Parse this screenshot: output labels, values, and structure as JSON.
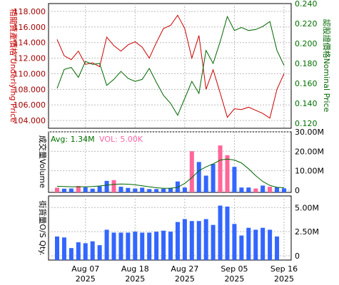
{
  "chart_data": [
    {
      "type": "line",
      "panel": "price",
      "x": [
        "Aug 01",
        "Aug 04",
        "Aug 05",
        "Aug 06",
        "Aug 07",
        "Aug 08",
        "Aug 11",
        "Aug 12",
        "Aug 13",
        "Aug 14",
        "Aug 15",
        "Aug 18",
        "Aug 19",
        "Aug 20",
        "Aug 21",
        "Aug 22",
        "Aug 25",
        "Aug 26",
        "Aug 27",
        "Aug 28",
        "Aug 29",
        "Sep 01",
        "Sep 02",
        "Sep 03",
        "Sep 04",
        "Sep 05",
        "Sep 08",
        "Sep 09",
        "Sep 10",
        "Sep 11",
        "Sep 12",
        "Sep 15",
        "Sep 16"
      ],
      "series": [
        {
          "name": "相關資產價格 Underlying Price",
          "axis": "left",
          "color": "#cc0000",
          "values": [
            114.4,
            112.3,
            111.8,
            112.9,
            111.2,
            111.4,
            110.9,
            114.7,
            113.6,
            112.9,
            113.7,
            114.1,
            113.4,
            112.0,
            114.0,
            115.8,
            116.2,
            117.5,
            115.8,
            112.0,
            114.9,
            108.0,
            110.5,
            107.5,
            104.4,
            105.5,
            105.4,
            105.7,
            105.3,
            104.9,
            104.3,
            108.0,
            110.0
          ]
        },
        {
          "name": "Nominal Price",
          "axis": "right",
          "color": "#006600",
          "values": [
            0.155,
            0.174,
            0.176,
            0.166,
            0.182,
            0.179,
            0.18,
            0.158,
            0.164,
            0.172,
            0.165,
            0.162,
            0.164,
            0.175,
            0.161,
            0.148,
            0.14,
            0.128,
            0.145,
            0.162,
            0.15,
            0.193,
            0.18,
            0.202,
            0.227,
            0.213,
            0.216,
            0.213,
            0.214,
            0.217,
            0.222,
            0.193,
            0.178
          ]
        }
      ],
      "ylim_left": [
        103,
        119
      ],
      "yticks_left": [
        "104.000",
        "106.000",
        "108.000",
        "110.000",
        "112.000",
        "114.000",
        "116.000",
        "118.000"
      ],
      "ylim_right": [
        0.115,
        0.24
      ],
      "yticks_right": [
        "0.120",
        "0.140",
        "0.160",
        "0.180",
        "0.200",
        "0.220",
        "0.240"
      ],
      "ylabel_left": "相關資產價格 Underlying Price",
      "ylabel_right": "認股證價格Nominal Price",
      "grid": true
    },
    {
      "type": "bar",
      "panel": "volume",
      "title": "Avg: 1.34M",
      "annotation": "VOL: 5.00K",
      "ylabel": "成交量Volume",
      "ylim": [
        0,
        30000000
      ],
      "yticks": [
        "0",
        "10.00M",
        "20.00M",
        "30.00M"
      ],
      "values": [
        1300000,
        800000,
        900000,
        2200000,
        1500000,
        800000,
        2000000,
        4800000,
        5200000,
        1800000,
        1200000,
        900000,
        1300000,
        600000,
        600000,
        800000,
        1200000,
        4500000,
        1400000,
        20000000,
        14500000,
        7500000,
        13500000,
        23000000,
        18000000,
        12000000,
        1400000,
        1400000,
        900000,
        2400000,
        1800000,
        1500000,
        1000000
      ],
      "bar_colors": [
        "#ff6699",
        "#3366ff",
        "#3366ff",
        "#ff6699",
        "#3366ff",
        "#3366ff",
        "#3366ff",
        "#3366ff",
        "#ff6699",
        "#3366ff",
        "#3366ff",
        "#3366ff",
        "#3366ff",
        "#3366ff",
        "#3366ff",
        "#3366ff",
        "#3366ff",
        "#3366ff",
        "#3366ff",
        "#ff6699",
        "#3366ff",
        "#3366ff",
        "#3366ff",
        "#ff6699",
        "#ff6699",
        "#3366ff",
        "#3366ff",
        "#3366ff",
        "#ff6699",
        "#3366ff",
        "#ff6699",
        "#3366ff",
        "#3366ff"
      ],
      "avg_line": [
        2000000,
        1900000,
        1800000,
        1800000,
        1800000,
        1900000,
        2200000,
        2600000,
        3000000,
        3200000,
        3100000,
        2800000,
        2300000,
        1800000,
        1300000,
        1000000,
        1000000,
        1500000,
        3500000,
        6500000,
        10000000,
        12000000,
        13500000,
        15500000,
        16000000,
        15500000,
        14000000,
        11000000,
        7500000,
        4500000,
        2500000,
        1500000,
        1300000
      ]
    },
    {
      "type": "bar",
      "panel": "os_qty",
      "ylabel": "街貨量O/S Qty.",
      "ylim": [
        0,
        6200000
      ],
      "yticks": [
        "0",
        "2.50M",
        "5.00M"
      ],
      "values": [
        2000000,
        1900000,
        800000,
        1400000,
        1300000,
        1500000,
        1100000,
        2700000,
        2400000,
        2400000,
        2400000,
        2500000,
        2400000,
        2400000,
        2500000,
        2600000,
        2500000,
        3500000,
        3800000,
        3600000,
        3600000,
        3800000,
        3200000,
        5200000,
        5100000,
        3300000,
        2100000,
        2900000,
        2700000,
        2900000,
        2700000,
        2000000,
        0
      ],
      "bar_color": "#3366ff",
      "xtick_labels": [
        {
          "line1": "Aug 07",
          "line2": "2025",
          "index": 4
        },
        {
          "line1": "Aug 18",
          "line2": "2025",
          "index": 11
        },
        {
          "line1": "Aug 27",
          "line2": "2025",
          "index": 18
        },
        {
          "line1": "Sep 05",
          "line2": "2025",
          "index": 25
        },
        {
          "line1": "Sep 16",
          "line2": "2025",
          "index": 32
        }
      ]
    }
  ]
}
